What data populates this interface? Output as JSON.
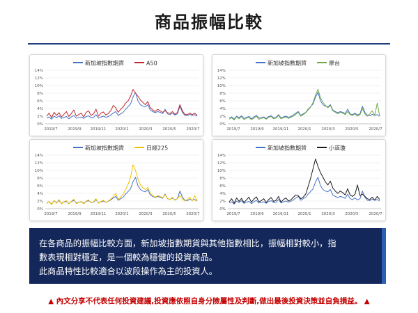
{
  "page": {
    "title": "商品振幅比較",
    "summary_lines": [
      "在各商品的振幅比較方面，新加坡指數期貨與其他指數相比，振幅相對較小，指",
      "數表現相對穩定，是一個較為穩健的投資商品。",
      "此商品特性比較適合以波段操作為主的投資人。"
    ],
    "disclaimer": "內文分享不代表任何投資建議,投資應依照自身分險屬性及判斷,做出最後投資決策並自負損益。",
    "warning_icon": "warning-icon",
    "colors": {
      "header_line": "#1f3d7a",
      "summary_bg": "#14275a",
      "disclaimer": "#c40000"
    }
  },
  "chart_data": [
    {
      "type": "line",
      "legend_position": "top",
      "grid": true,
      "ylim": [
        0,
        14
      ],
      "yticks": [
        "0%",
        "2%",
        "4%",
        "6%",
        "8%",
        "10%",
        "12%",
        "14%"
      ],
      "xticks": [
        "2019/7",
        "2019/9",
        "2019/11",
        "2020/1",
        "2020/3",
        "2020/5",
        "2020/7"
      ],
      "series": [
        {
          "name": "新加坡指數期貨",
          "color": "#4472c4",
          "values": [
            1.5,
            1.8,
            1.2,
            2.0,
            1.6,
            2.1,
            1.4,
            1.7,
            1.9,
            1.3,
            1.8,
            2.2,
            1.5,
            1.6,
            1.8,
            1.4,
            1.9,
            2.1,
            1.6,
            1.7,
            2.4,
            1.5,
            1.8,
            2.0,
            1.7,
            1.9,
            2.3,
            2.8,
            3.2,
            2.2,
            2.6,
            3.0,
            3.8,
            4.5,
            5.2,
            7.0,
            8.2,
            6.0,
            5.0,
            4.6,
            4.4,
            5.0,
            3.6,
            3.2,
            2.9,
            3.2,
            3.0,
            2.7,
            3.8,
            2.6,
            2.4,
            2.8,
            2.3,
            2.6,
            4.6,
            3.0,
            2.2,
            2.1,
            2.5,
            2.2,
            2.4,
            2.0
          ]
        },
        {
          "name": "A50",
          "color": "#c0282d",
          "values": [
            2.0,
            2.8,
            1.6,
            3.0,
            2.2,
            2.9,
            1.8,
            2.5,
            3.2,
            1.9,
            2.7,
            3.6,
            2.0,
            2.4,
            2.8,
            1.8,
            3.0,
            3.4,
            2.2,
            2.6,
            3.8,
            2.0,
            2.8,
            3.1,
            2.3,
            2.7,
            3.5,
            4.8,
            4.2,
            3.0,
            3.8,
            4.4,
            5.4,
            6.0,
            7.2,
            9.0,
            8.0,
            7.2,
            6.2,
            5.6,
            5.0,
            5.8,
            4.2,
            3.6,
            3.2,
            3.8,
            3.4,
            3.0,
            3.4,
            2.9,
            2.7,
            3.2,
            2.5,
            3.0,
            5.0,
            3.4,
            2.5,
            2.4,
            2.8,
            2.4,
            2.8,
            2.2
          ]
        }
      ]
    },
    {
      "type": "line",
      "legend_position": "top",
      "grid": true,
      "ylim": [
        0,
        14
      ],
      "yticks": [
        "0%",
        "2%",
        "4%",
        "6%",
        "8%",
        "10%",
        "12%",
        "14%"
      ],
      "xticks": [
        "2019/7",
        "2019/9",
        "2019/11",
        "2020/1",
        "2020/3",
        "2020/5",
        "2020/7"
      ],
      "series": [
        {
          "name": "新加坡指數期貨",
          "color": "#4472c4",
          "values": [
            1.5,
            1.8,
            1.2,
            2.0,
            1.6,
            2.1,
            1.4,
            1.7,
            1.9,
            1.3,
            1.8,
            2.2,
            1.5,
            1.6,
            1.8,
            1.4,
            1.9,
            2.1,
            1.6,
            1.7,
            2.4,
            1.5,
            1.8,
            2.0,
            1.7,
            1.9,
            2.3,
            2.8,
            3.2,
            2.2,
            2.6,
            3.0,
            3.8,
            4.5,
            5.2,
            7.0,
            8.2,
            6.0,
            5.0,
            4.6,
            4.4,
            5.0,
            3.6,
            3.2,
            2.9,
            3.2,
            3.0,
            2.7,
            3.8,
            2.6,
            2.4,
            2.8,
            2.3,
            2.6,
            4.6,
            3.0,
            2.2,
            2.1,
            2.5,
            2.2,
            2.4,
            2.0
          ]
        },
        {
          "name": "摩台",
          "color": "#70a845",
          "values": [
            1.2,
            1.6,
            1.0,
            1.8,
            1.3,
            1.9,
            1.1,
            1.5,
            1.7,
            1.1,
            1.5,
            2.0,
            1.2,
            1.4,
            1.6,
            1.2,
            1.7,
            1.9,
            1.3,
            1.5,
            2.2,
            1.3,
            1.6,
            1.8,
            1.4,
            1.7,
            2.0,
            2.5,
            3.0,
            2.0,
            2.4,
            2.9,
            3.6,
            4.4,
            5.6,
            7.5,
            9.0,
            6.8,
            5.6,
            4.8,
            4.2,
            4.8,
            3.4,
            3.0,
            2.6,
            3.0,
            2.8,
            2.4,
            3.2,
            2.4,
            2.2,
            2.6,
            2.0,
            2.4,
            4.0,
            2.6,
            2.0,
            2.6,
            3.4,
            2.2,
            5.4,
            2.0
          ]
        }
      ]
    },
    {
      "type": "line",
      "legend_position": "top",
      "grid": true,
      "ylim": [
        0,
        14
      ],
      "yticks": [
        "0%",
        "2%",
        "4%",
        "6%",
        "8%",
        "10%",
        "12%",
        "14%"
      ],
      "xticks": [
        "2019/7",
        "2019/9",
        "2019/11",
        "2020/1",
        "2020/3",
        "2020/5",
        "2020/7"
      ],
      "series": [
        {
          "name": "新加坡指數期貨",
          "color": "#4472c4",
          "values": [
            1.5,
            1.8,
            1.2,
            2.0,
            1.6,
            2.1,
            1.4,
            1.7,
            1.9,
            1.3,
            1.8,
            2.2,
            1.5,
            1.6,
            1.8,
            1.4,
            1.9,
            2.1,
            1.6,
            1.7,
            2.4,
            1.5,
            1.8,
            2.0,
            1.7,
            1.9,
            2.3,
            2.8,
            3.2,
            2.2,
            2.6,
            3.0,
            3.8,
            4.5,
            5.2,
            7.0,
            8.2,
            6.0,
            5.0,
            4.6,
            4.4,
            5.0,
            3.6,
            3.2,
            2.9,
            3.2,
            3.0,
            2.7,
            3.8,
            2.6,
            2.4,
            2.8,
            2.3,
            2.6,
            4.6,
            3.0,
            2.2,
            2.1,
            2.5,
            2.2,
            2.4,
            2.0
          ]
        },
        {
          "name": "日經225",
          "color": "#f2c200",
          "values": [
            1.3,
            1.9,
            1.0,
            2.2,
            1.4,
            2.4,
            1.2,
            1.8,
            2.1,
            1.2,
            1.9,
            2.5,
            1.3,
            1.6,
            1.9,
            1.2,
            2.0,
            2.3,
            1.5,
            1.8,
            2.6,
            1.4,
            1.9,
            2.2,
            1.6,
            2.0,
            2.5,
            3.2,
            4.0,
            2.4,
            3.0,
            3.8,
            5.0,
            6.4,
            8.2,
            11.5,
            10.0,
            7.8,
            6.2,
            5.4,
            5.0,
            5.6,
            4.0,
            3.4,
            3.0,
            3.4,
            3.2,
            2.8,
            3.6,
            2.7,
            2.4,
            3.0,
            2.2,
            2.6,
            3.4,
            2.6,
            2.0,
            2.4,
            3.0,
            2.0,
            3.4,
            2.0
          ]
        }
      ]
    },
    {
      "type": "line",
      "legend_position": "top",
      "grid": true,
      "ylim": [
        0,
        14
      ],
      "yticks": [
        "0%",
        "2%",
        "4%",
        "6%",
        "8%",
        "10%",
        "12%",
        "14%"
      ],
      "xticks": [
        "2019/7",
        "2019/9",
        "2019/11",
        "2020/1",
        "2020/3",
        "2020/5",
        "2020/7"
      ],
      "series": [
        {
          "name": "新加坡指數期貨",
          "color": "#4472c4",
          "values": [
            1.5,
            1.8,
            1.2,
            2.0,
            1.6,
            2.1,
            1.4,
            1.7,
            1.9,
            1.3,
            1.8,
            2.2,
            1.5,
            1.6,
            1.8,
            1.4,
            1.9,
            2.1,
            1.6,
            1.7,
            2.4,
            1.5,
            1.8,
            2.0,
            1.7,
            1.9,
            2.3,
            2.8,
            3.2,
            2.2,
            2.6,
            3.0,
            3.8,
            4.5,
            5.2,
            7.0,
            8.2,
            6.0,
            5.0,
            4.6,
            4.4,
            5.0,
            3.6,
            3.2,
            2.9,
            3.2,
            3.0,
            2.7,
            3.8,
            2.6,
            2.4,
            2.8,
            2.3,
            2.6,
            4.6,
            3.0,
            2.2,
            2.1,
            2.5,
            2.2,
            2.4,
            2.0
          ]
        },
        {
          "name": "小道瓊",
          "color": "#1a1a1a",
          "values": [
            1.8,
            2.6,
            1.4,
            2.8,
            1.9,
            2.7,
            1.6,
            2.3,
            3.0,
            1.7,
            2.5,
            3.1,
            1.8,
            2.1,
            2.6,
            1.6,
            2.4,
            2.9,
            1.9,
            2.2,
            3.2,
            1.7,
            2.4,
            2.8,
            2.0,
            2.3,
            3.0,
            3.6,
            3.4,
            2.6,
            3.0,
            3.8,
            5.8,
            8.0,
            10.5,
            13.0,
            11.0,
            9.4,
            8.2,
            7.0,
            6.2,
            7.2,
            5.4,
            4.6,
            4.0,
            4.6,
            4.2,
            3.6,
            5.2,
            3.6,
            3.2,
            3.8,
            6.2,
            3.4,
            3.8,
            3.2,
            2.6,
            2.4,
            3.0,
            2.2,
            3.2,
            2.4
          ]
        }
      ]
    }
  ]
}
